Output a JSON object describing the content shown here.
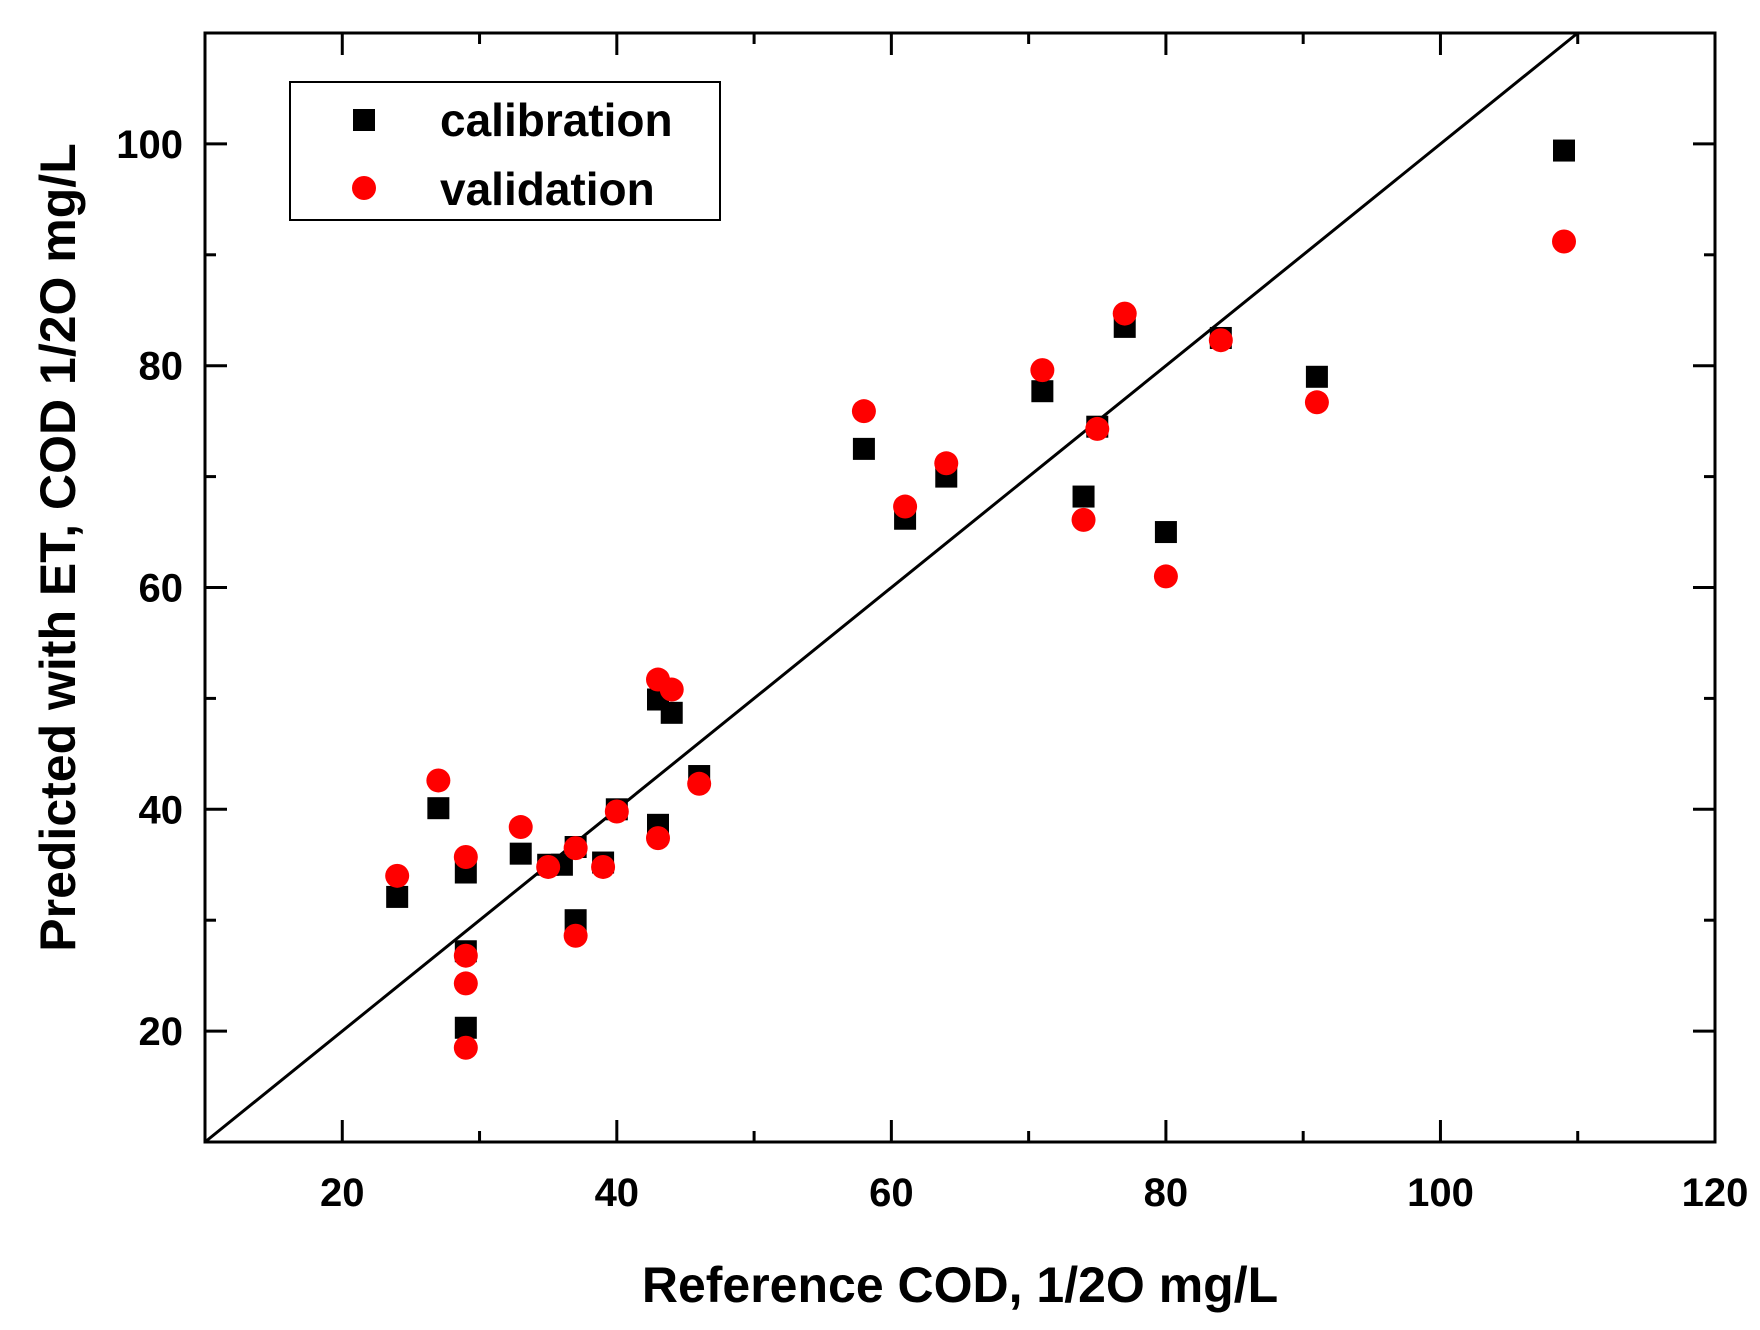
{
  "chart_data": {
    "type": "scatter",
    "title": "",
    "xlabel": "Reference COD,  1/2O mg/L",
    "ylabel": "Predicted with ET, COD 1/2O mg/L",
    "xlim": [
      10,
      120
    ],
    "ylim": [
      10,
      110
    ],
    "x_ticks": [
      20,
      40,
      60,
      80,
      100,
      120
    ],
    "y_ticks": [
      20,
      40,
      60,
      80,
      100
    ],
    "x_tick_labels": [
      "20",
      "40",
      "60",
      "80",
      "100",
      "120"
    ],
    "y_tick_labels": [
      "20",
      "40",
      "60",
      "80",
      "100"
    ],
    "grid": false,
    "legend_position": "top-left",
    "reference_line": {
      "x": [
        10,
        110
      ],
      "y": [
        10,
        110
      ]
    },
    "series": [
      {
        "name": "calibration",
        "marker": "square",
        "color": "#000000",
        "points": [
          [
            24,
            32.1
          ],
          [
            27,
            40.1
          ],
          [
            29,
            34.3
          ],
          [
            29,
            27.2
          ],
          [
            29,
            20.3
          ],
          [
            33,
            36
          ],
          [
            35,
            35
          ],
          [
            36,
            35
          ],
          [
            37,
            36.6
          ],
          [
            37,
            30
          ],
          [
            39,
            35.2
          ],
          [
            40,
            40
          ],
          [
            43,
            49.9
          ],
          [
            43,
            38.6
          ],
          [
            44,
            48.7
          ],
          [
            46,
            43
          ],
          [
            58,
            72.5
          ],
          [
            61,
            66.2
          ],
          [
            64,
            70
          ],
          [
            71,
            77.7
          ],
          [
            74,
            68.2
          ],
          [
            75,
            74.5
          ],
          [
            77,
            83.5
          ],
          [
            80,
            65
          ],
          [
            84,
            82.5
          ],
          [
            91,
            79
          ],
          [
            109,
            99.4
          ]
        ]
      },
      {
        "name": "validation",
        "marker": "circle",
        "color": "#ff0000",
        "points": [
          [
            24,
            34
          ],
          [
            27,
            42.6
          ],
          [
            29,
            35.7
          ],
          [
            29,
            26.8
          ],
          [
            29,
            24.3
          ],
          [
            29,
            18.5
          ],
          [
            33,
            38.4
          ],
          [
            35,
            34.8
          ],
          [
            37,
            36.5
          ],
          [
            37,
            28.6
          ],
          [
            39,
            34.8
          ],
          [
            40,
            39.8
          ],
          [
            43,
            51.7
          ],
          [
            43,
            37.4
          ],
          [
            44,
            50.8
          ],
          [
            46,
            42.3
          ],
          [
            58,
            75.9
          ],
          [
            61,
            67.3
          ],
          [
            64,
            71.2
          ],
          [
            71,
            79.6
          ],
          [
            74,
            66.1
          ],
          [
            75,
            74.3
          ],
          [
            77,
            84.7
          ],
          [
            80,
            61
          ],
          [
            84,
            82.3
          ],
          [
            91,
            76.7
          ],
          [
            109,
            91.2
          ]
        ]
      }
    ]
  }
}
